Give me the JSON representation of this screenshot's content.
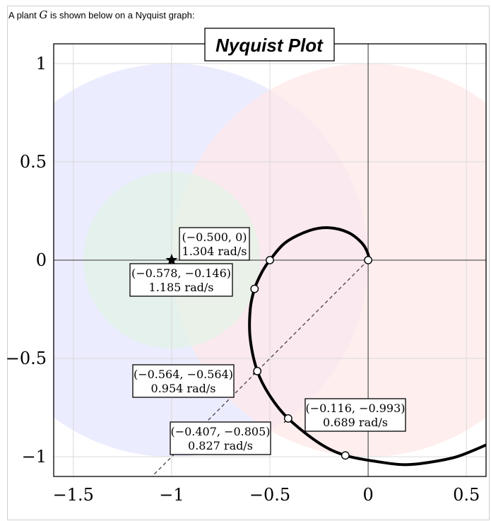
{
  "intro": {
    "prefix": "A plant ",
    "var": "G",
    "suffix": " is shown below on a Nyquist graph:"
  },
  "chart_data": {
    "type": "line",
    "title": "Nyquist Plot",
    "xlim": [
      -1.6,
      0.6
    ],
    "ylim": [
      -1.1,
      1.1
    ],
    "xticks": [
      -1.5,
      -1,
      -0.5,
      0,
      0.5
    ],
    "xtick_labels": [
      "−1.5",
      "−1",
      "−0.5",
      "0",
      "0.5"
    ],
    "yticks": [
      1,
      0.5,
      0,
      -0.5,
      -1
    ],
    "ytick_labels": [
      "1",
      "0.5",
      "0",
      "−0.5",
      "−1"
    ],
    "grid": true,
    "critical_point": {
      "x": -1,
      "y": 0,
      "marker": "star"
    },
    "regions": [
      {
        "cx": -1,
        "cy": 0,
        "r": 1,
        "color": "#e6e6ff"
      },
      {
        "cx": 0,
        "cy": 0,
        "r": 1,
        "color": "#ffe8e8"
      },
      {
        "cx": -1,
        "cy": 0,
        "r": 0.45,
        "color": "#e3f3e6"
      }
    ],
    "reference_line": {
      "from": [
        0,
        0
      ],
      "to": [
        -1.1,
        -1.1
      ],
      "style": "dashed"
    },
    "curve": [
      {
        "x": 0.6,
        "y": -0.94
      },
      {
        "x": 0.45,
        "y": -1.0
      },
      {
        "x": 0.3,
        "y": -1.03
      },
      {
        "x": 0.18,
        "y": -1.04
      },
      {
        "x": 0.05,
        "y": -1.025
      },
      {
        "x": -0.116,
        "y": -0.993
      },
      {
        "x": -0.25,
        "y": -0.93
      },
      {
        "x": -0.407,
        "y": -0.805
      },
      {
        "x": -0.5,
        "y": -0.69
      },
      {
        "x": -0.564,
        "y": -0.564
      },
      {
        "x": -0.6,
        "y": -0.4
      },
      {
        "x": -0.6,
        "y": -0.25
      },
      {
        "x": -0.578,
        "y": -0.146
      },
      {
        "x": -0.54,
        "y": -0.06
      },
      {
        "x": -0.5,
        "y": 0.0
      },
      {
        "x": -0.42,
        "y": 0.09
      },
      {
        "x": -0.3,
        "y": 0.15
      },
      {
        "x": -0.2,
        "y": 0.165
      },
      {
        "x": -0.1,
        "y": 0.14
      },
      {
        "x": -0.03,
        "y": 0.085
      },
      {
        "x": 0.0,
        "y": 0.03
      },
      {
        "x": 0.0,
        "y": 0.0
      }
    ],
    "points": [
      {
        "x": 0,
        "y": 0,
        "coord": "",
        "freq": ""
      },
      {
        "x": -0.5,
        "y": 0,
        "coord": "(−0.500, 0)",
        "freq": "1.304 rad/s"
      },
      {
        "x": -0.578,
        "y": -0.146,
        "coord": "(−0.578, −0.146)",
        "freq": "1.185 rad/s"
      },
      {
        "x": -0.564,
        "y": -0.564,
        "coord": "(−0.564, −0.564)",
        "freq": "0.954 rad/s"
      },
      {
        "x": -0.407,
        "y": -0.805,
        "coord": "(−0.407, −0.805)",
        "freq": "0.827 rad/s"
      },
      {
        "x": -0.116,
        "y": -0.993,
        "coord": "(−0.116, −0.993)",
        "freq": "0.689 rad/s"
      }
    ]
  }
}
